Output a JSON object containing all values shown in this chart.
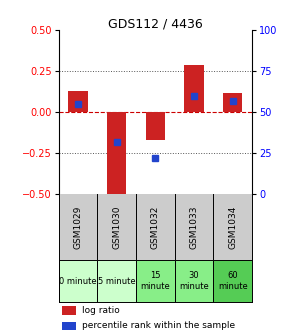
{
  "title": "GDS112 / 4436",
  "samples": [
    "GSM1029",
    "GSM1030",
    "GSM1032",
    "GSM1033",
    "GSM1034"
  ],
  "time_labels": [
    "0 minute",
    "5 minute",
    "15\nminute",
    "30\nminute",
    "60\nminute"
  ],
  "time_colors": [
    "#ccffcc",
    "#ccffcc",
    "#88ee88",
    "#88ee88",
    "#55cc55"
  ],
  "log_ratios": [
    0.13,
    -0.52,
    -0.17,
    0.29,
    0.12
  ],
  "percentile_ranks": [
    55,
    32,
    22,
    60,
    57
  ],
  "ylim_left": [
    -0.5,
    0.5
  ],
  "ylim_right": [
    0,
    100
  ],
  "bar_color": "#cc2222",
  "dot_color": "#2244cc",
  "bar_width": 0.5,
  "dot_size": 25,
  "yticks_left": [
    -0.5,
    -0.25,
    0,
    0.25,
    0.5
  ],
  "yticks_right": [
    0,
    25,
    50,
    75,
    100
  ],
  "zero_line_color": "#cc0000",
  "grid_color": "#555555",
  "sample_box_color": "#cccccc",
  "bg_color": "#ffffff"
}
